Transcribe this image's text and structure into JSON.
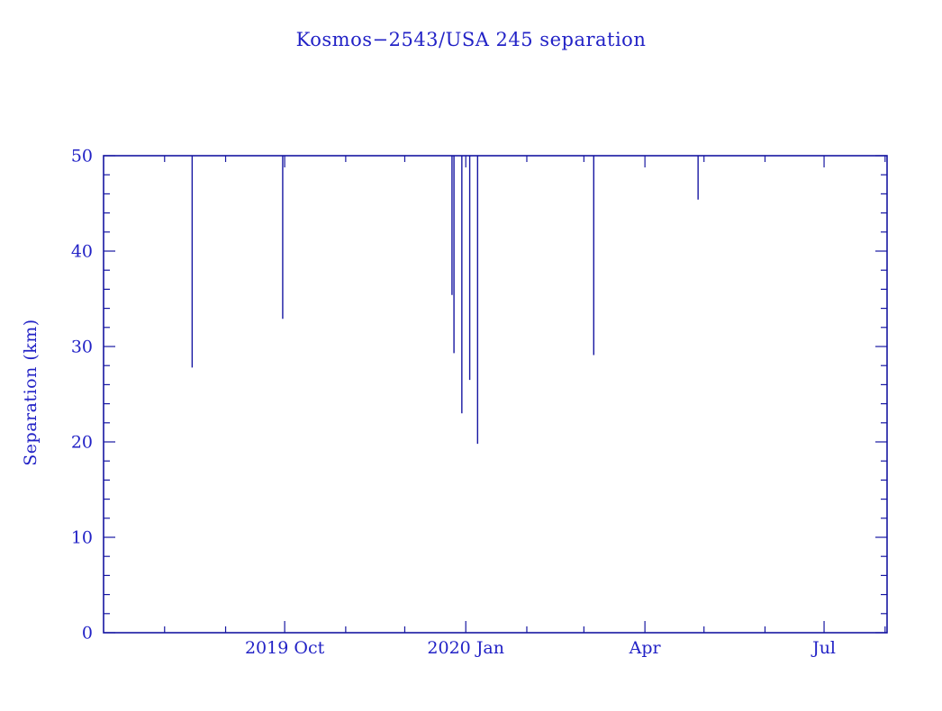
{
  "title": "Kosmos−2543/USA 245 separation",
  "colors": {
    "background": "#ffffff",
    "plot_blue": "#1717a2",
    "text_blue": "#2222c6"
  },
  "chart_data": {
    "type": "line",
    "subtype": "vertical separation-dip spikes descending from off-scale top (close approaches)",
    "title": "Kosmos−2543/USA 245 separation",
    "xlabel": "",
    "ylabel": "Separation (km)",
    "ylim": [
      0,
      50
    ],
    "y_tick_labels": [
      "0",
      "10",
      "20",
      "30",
      "40",
      "50"
    ],
    "y_major_tick_step": 10,
    "y_minor_tick_step": 2,
    "x_domain": [
      "2019-07-01",
      "2020-08-02"
    ],
    "x_major_ticks": [
      {
        "date": "2019-10-01",
        "label": "2019 Oct"
      },
      {
        "date": "2020-01-01",
        "label": "2020 Jan"
      },
      {
        "date": "2020-04-01",
        "label": "Apr"
      },
      {
        "date": "2020-07-01",
        "label": "Jul"
      }
    ],
    "x_minor_tick": "monthly (1st of each month)",
    "grid": false,
    "legend": false,
    "frame": "closed box, ticks on all four sides pointing inward",
    "spike_top_km": 50,
    "series": [
      {
        "name": "separation dips",
        "points": [
          {
            "date": "2019-08-15",
            "min_km": 27.8
          },
          {
            "date": "2019-09-30",
            "min_km": 32.9
          },
          {
            "date": "2019-12-25",
            "min_km": 35.4
          },
          {
            "date": "2019-12-26",
            "min_km": 29.3
          },
          {
            "date": "2019-12-30",
            "min_km": 23.0
          },
          {
            "date": "2020-01-03",
            "min_km": 26.5
          },
          {
            "date": "2020-01-07",
            "min_km": 19.8
          },
          {
            "date": "2020-03-06",
            "min_km": 29.1
          },
          {
            "date": "2020-04-28",
            "min_km": 45.4
          }
        ]
      }
    ]
  }
}
